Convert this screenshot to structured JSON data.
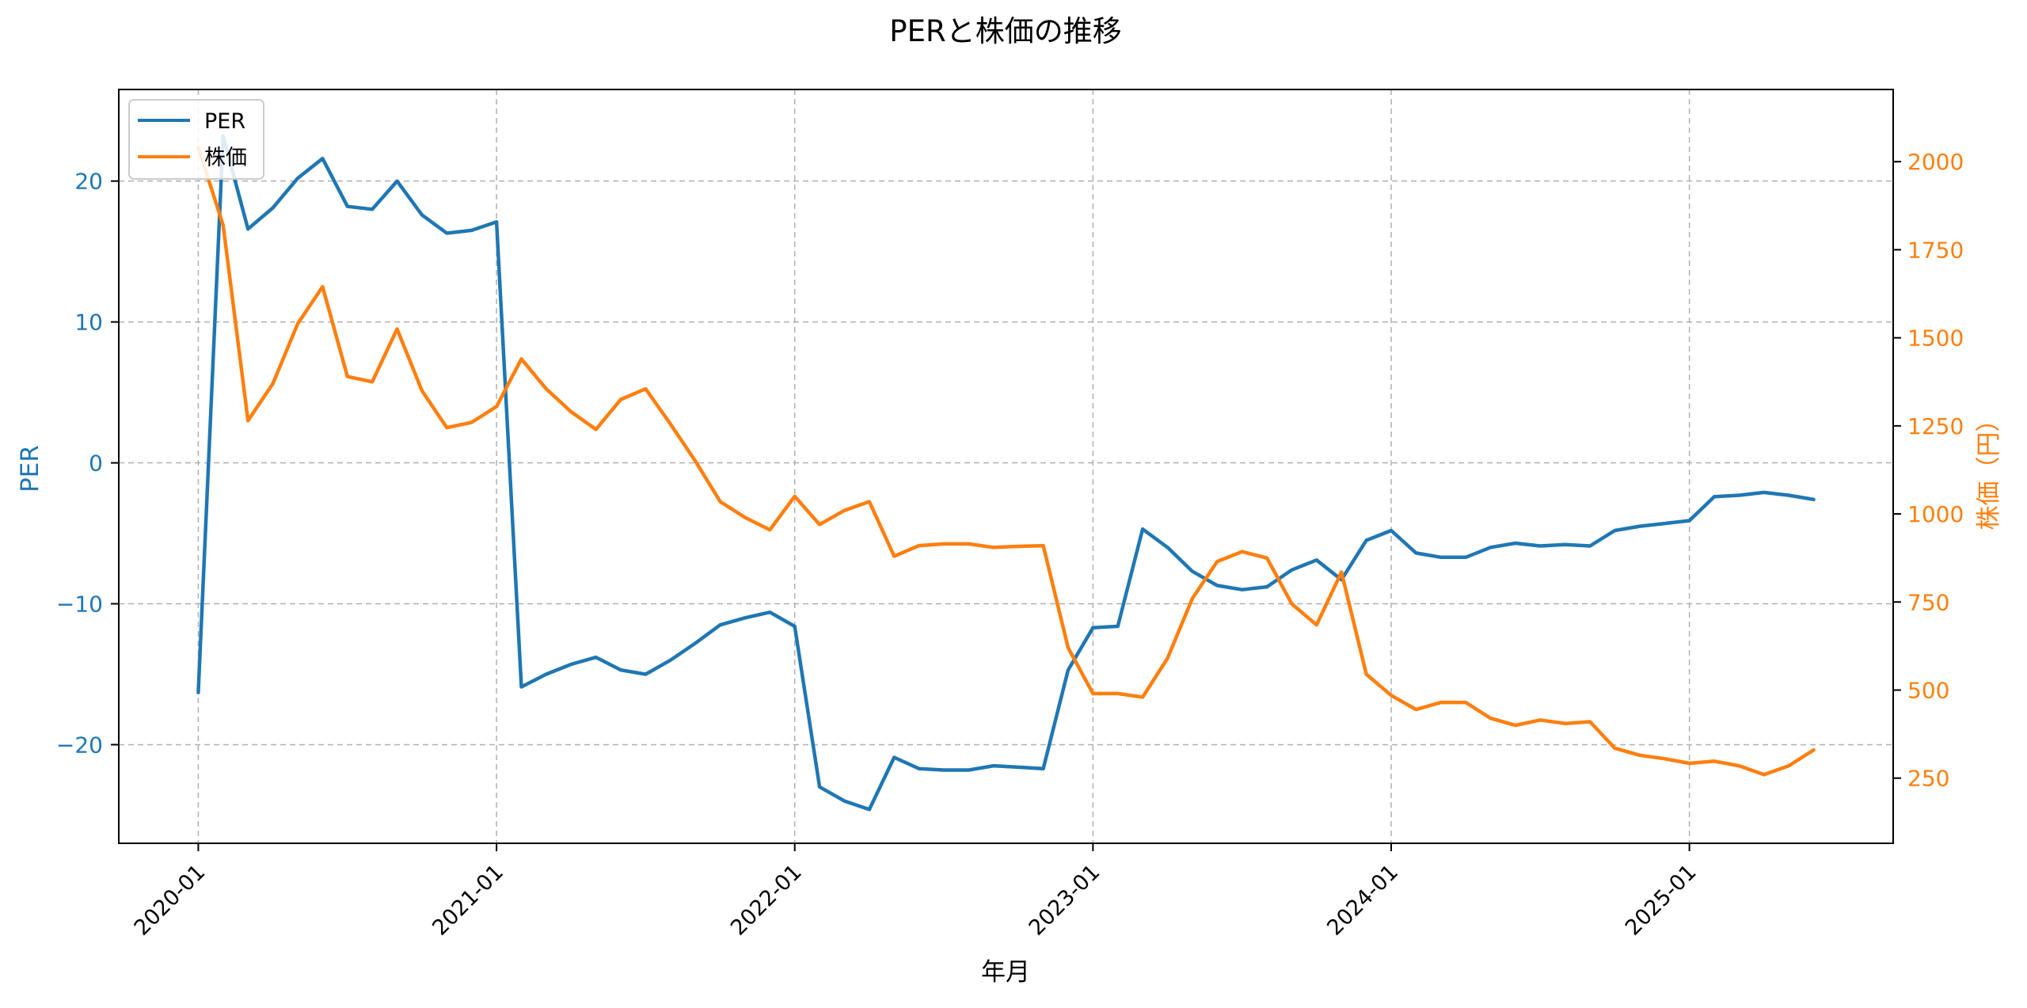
{
  "chart_data": {
    "type": "line",
    "title": "PERと株価の推移",
    "xlabel": "年月",
    "ylabel": "PER",
    "y2label": "株価（円）",
    "x_ticks": [
      "2020-01",
      "2021-01",
      "2022-01",
      "2023-01",
      "2024-01",
      "2025-01"
    ],
    "y_ticks": [
      -20,
      -10,
      0,
      10,
      20
    ],
    "y2_ticks": [
      250,
      500,
      750,
      1000,
      1250,
      1500,
      1750,
      2000
    ],
    "ylim": [
      -27,
      26.5
    ],
    "y2lim": [
      65,
      2205
    ],
    "xlim": [
      -3.2,
      68.2
    ],
    "grid": true,
    "legend_position": "top-left",
    "colors": {
      "per": "#1f77b4",
      "price": "#ff7f0e",
      "axis": "#000000",
      "grid": "#b0b0b0"
    },
    "x": [
      0,
      1,
      2,
      3,
      4,
      5,
      6,
      7,
      8,
      9,
      10,
      11,
      12,
      13,
      14,
      15,
      16,
      17,
      18,
      19,
      20,
      21,
      22,
      23,
      24,
      25,
      26,
      27,
      28,
      29,
      30,
      31,
      32,
      33,
      34,
      35,
      36,
      37,
      38,
      39,
      40,
      41,
      42,
      43,
      44,
      45,
      46,
      47,
      48,
      49,
      50,
      51,
      52,
      53,
      54,
      55,
      56,
      57,
      58,
      59,
      60,
      61,
      62,
      63,
      64,
      65,
      66
    ],
    "series": [
      {
        "name": "PER",
        "axis": "left",
        "values": [
          -16.3,
          23.2,
          16.6,
          18.1,
          20.2,
          21.6,
          18.2,
          18.0,
          20.0,
          17.6,
          16.3,
          16.5,
          17.1,
          -15.9,
          -15.0,
          -14.3,
          -13.8,
          -14.7,
          -15.0,
          -14.0,
          -12.8,
          -11.5,
          -11.0,
          -10.6,
          -11.6,
          -23.0,
          -24.0,
          -24.6,
          -20.9,
          -21.7,
          -21.8,
          -21.8,
          -21.5,
          -21.6,
          -21.7,
          -14.7,
          -11.7,
          -11.6,
          -4.7,
          -6.0,
          -7.7,
          -8.7,
          -9.0,
          -8.8,
          -7.6,
          -6.9,
          -8.3,
          -5.5,
          -4.8,
          -6.4,
          -6.7,
          -6.7,
          -6.0,
          -5.7,
          -5.9,
          -5.8,
          -5.9,
          -4.8,
          -4.5,
          -4.3,
          -4.1,
          -2.4,
          -2.3,
          -2.1,
          -2.3,
          -2.6,
          null
        ]
      },
      {
        "name": "株価",
        "axis": "right",
        "values": [
          2040,
          1820,
          1265,
          1370,
          1540,
          1645,
          1390,
          1375,
          1525,
          1350,
          1245,
          1260,
          1305,
          1440,
          1355,
          1290,
          1240,
          1325,
          1355,
          1255,
          1150,
          1035,
          990,
          955,
          1050,
          970,
          1010,
          1035,
          880,
          910,
          915,
          915,
          905,
          908,
          910,
          620,
          490,
          490,
          480,
          590,
          760,
          865,
          893,
          875,
          745,
          685,
          835,
          545,
          485,
          445,
          465,
          465,
          420,
          400,
          415,
          405,
          410,
          335,
          315,
          305,
          292,
          298,
          285,
          260,
          285,
          330,
          null
        ]
      }
    ]
  }
}
